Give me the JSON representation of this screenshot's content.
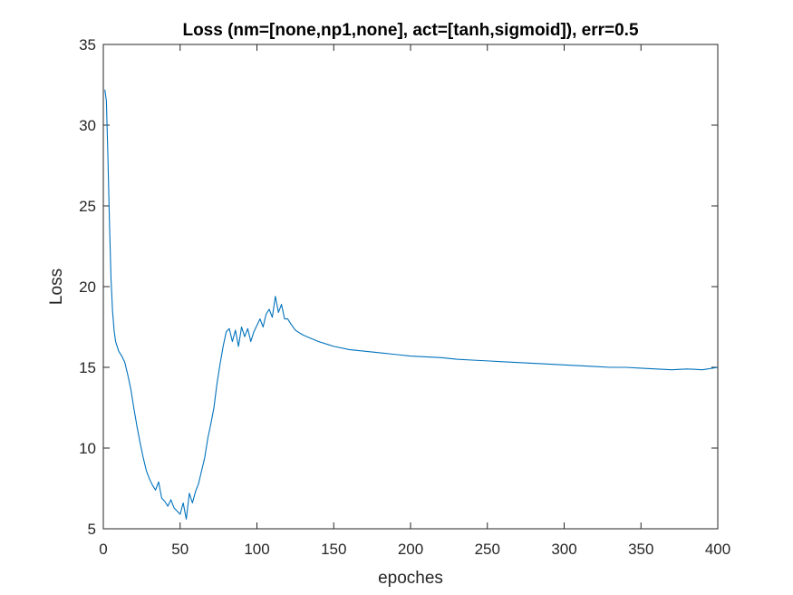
{
  "chart_data": {
    "type": "line",
    "title": "Loss (nm=[none,np1,none], act=[tanh,sigmoid]), err=0.5",
    "xlabel": "epoches",
    "ylabel": "Loss",
    "xlim": [
      0,
      400
    ],
    "ylim": [
      5,
      35
    ],
    "xticks": [
      0,
      50,
      100,
      150,
      200,
      250,
      300,
      350,
      400
    ],
    "yticks": [
      5,
      10,
      15,
      20,
      25,
      30,
      35
    ],
    "grid": false,
    "series": [
      {
        "name": "Loss",
        "color": "#0072BD",
        "x": [
          1,
          2,
          3,
          4,
          5,
          6,
          7,
          8,
          10,
          12,
          14,
          16,
          18,
          20,
          22,
          24,
          26,
          28,
          30,
          32,
          34,
          36,
          38,
          40,
          42,
          44,
          46,
          48,
          50,
          52,
          54,
          56,
          58,
          60,
          62,
          64,
          66,
          68,
          70,
          72,
          74,
          76,
          78,
          80,
          82,
          84,
          86,
          88,
          90,
          92,
          94,
          96,
          98,
          100,
          102,
          104,
          106,
          108,
          110,
          112,
          114,
          116,
          118,
          120,
          122,
          125,
          130,
          135,
          140,
          145,
          150,
          160,
          170,
          180,
          190,
          200,
          210,
          220,
          230,
          240,
          250,
          260,
          270,
          280,
          290,
          300,
          310,
          320,
          330,
          340,
          350,
          360,
          370,
          380,
          390,
          400
        ],
        "y": [
          32.2,
          31.5,
          28.0,
          24.0,
          20.5,
          18.5,
          17.3,
          16.6,
          16.0,
          15.7,
          15.3,
          14.5,
          13.6,
          12.4,
          11.3,
          10.3,
          9.4,
          8.6,
          8.1,
          7.7,
          7.4,
          7.9,
          6.9,
          6.7,
          6.4,
          6.8,
          6.3,
          6.1,
          5.9,
          6.6,
          5.6,
          7.2,
          6.6,
          7.3,
          7.8,
          8.6,
          9.4,
          10.6,
          11.5,
          12.5,
          14.0,
          15.2,
          16.3,
          17.2,
          17.4,
          16.6,
          17.3,
          16.3,
          17.5,
          16.9,
          17.4,
          16.6,
          17.2,
          17.6,
          18.0,
          17.5,
          18.3,
          18.6,
          18.1,
          19.4,
          18.4,
          18.9,
          18.0,
          18.0,
          17.7,
          17.3,
          17.0,
          16.8,
          16.6,
          16.45,
          16.3,
          16.1,
          16.0,
          15.9,
          15.8,
          15.7,
          15.65,
          15.6,
          15.5,
          15.45,
          15.4,
          15.35,
          15.3,
          15.25,
          15.2,
          15.15,
          15.1,
          15.05,
          15.0,
          15.0,
          14.95,
          14.9,
          14.85,
          14.9,
          14.85,
          15.0
        ]
      }
    ]
  }
}
